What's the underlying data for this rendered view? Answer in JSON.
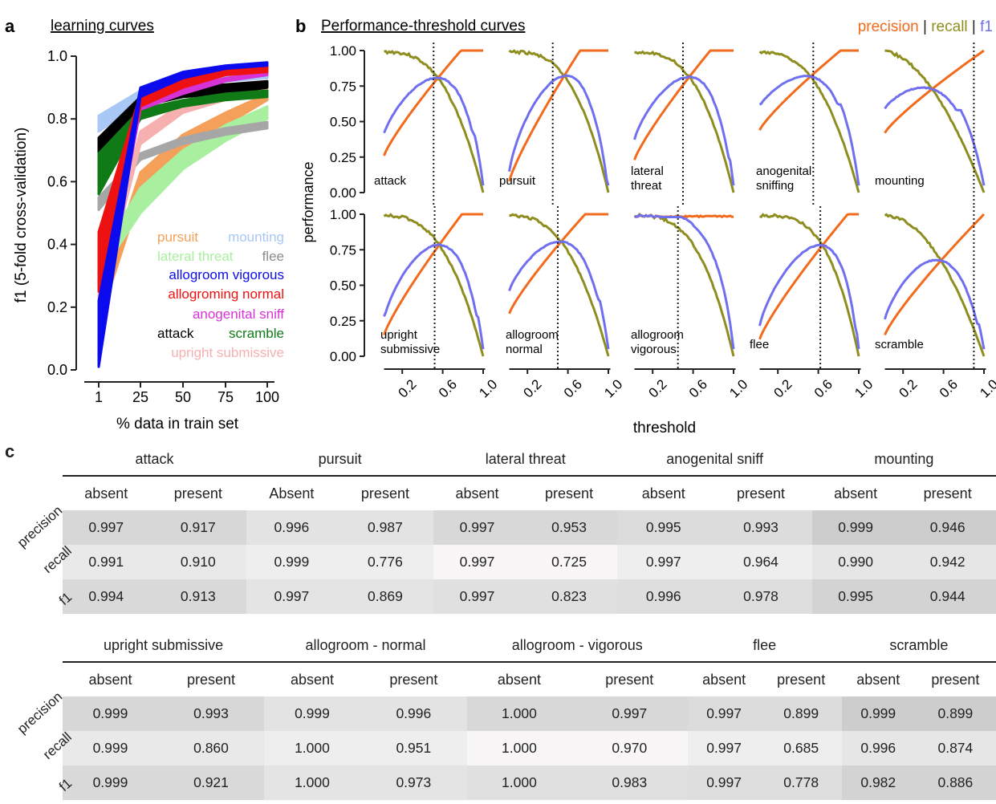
{
  "panel_a": {
    "letter": "a",
    "title": "learning curves",
    "chart_data": {
      "type": "line",
      "x": [
        1,
        25,
        50,
        75,
        100
      ],
      "x_tick_labels": [
        "1",
        "25",
        "50",
        "75",
        "100"
      ],
      "xlabel": "% data in train set",
      "ylabel": "f1 (5-fold cross-validation)",
      "ylim": [
        0,
        1
      ],
      "y_tick_labels": [
        "0.0",
        "0.2",
        "0.4",
        "0.6",
        "0.8",
        "1.0"
      ],
      "series": [
        {
          "name": "pursuit",
          "color": "#f5a05a",
          "lo": [
            0.15,
            0.56,
            0.69,
            0.78,
            0.86
          ],
          "hi": [
            0.23,
            0.63,
            0.75,
            0.82,
            0.88
          ]
        },
        {
          "name": "mounting",
          "color": "#a9c8f5",
          "lo": [
            0.76,
            0.85,
            0.9,
            0.92,
            0.93
          ],
          "hi": [
            0.81,
            0.89,
            0.93,
            0.95,
            0.96
          ]
        },
        {
          "name": "lateral threat",
          "color": "#a8f0a0",
          "lo": [
            0.3,
            0.5,
            0.64,
            0.73,
            0.8
          ],
          "hi": [
            0.36,
            0.58,
            0.7,
            0.78,
            0.84
          ]
        },
        {
          "name": "flee",
          "color": "#a6a6a6",
          "lo": [
            0.51,
            0.67,
            0.72,
            0.75,
            0.77
          ],
          "hi": [
            0.55,
            0.69,
            0.74,
            0.77,
            0.79
          ]
        },
        {
          "name": "upright submissive",
          "color": "#f6b0b0",
          "lo": [
            0.19,
            0.72,
            0.82,
            0.86,
            0.88
          ],
          "hi": [
            0.27,
            0.76,
            0.85,
            0.88,
            0.9
          ]
        },
        {
          "name": "attack",
          "color": "#000000",
          "lo": [
            0.69,
            0.84,
            0.87,
            0.88,
            0.9
          ],
          "hi": [
            0.74,
            0.87,
            0.9,
            0.91,
            0.92
          ]
        },
        {
          "name": "scramble",
          "color": "#107a16",
          "lo": [
            0.56,
            0.8,
            0.84,
            0.86,
            0.87
          ],
          "hi": [
            0.69,
            0.83,
            0.86,
            0.88,
            0.89
          ]
        },
        {
          "name": "anogenital sniff",
          "color": "#d633d6",
          "lo": [
            0.12,
            0.83,
            0.88,
            0.92,
            0.94
          ],
          "hi": [
            0.2,
            0.86,
            0.9,
            0.93,
            0.95
          ]
        },
        {
          "name": "allogroming normal",
          "color": "#ee1111",
          "lo": [
            0.25,
            0.84,
            0.9,
            0.94,
            0.95
          ],
          "hi": [
            0.44,
            0.88,
            0.93,
            0.96,
            0.97
          ]
        },
        {
          "name": "allogroom vigorous",
          "color": "#0b0bee",
          "lo": [
            0.01,
            0.87,
            0.93,
            0.96,
            0.97
          ],
          "hi": [
            0.22,
            0.9,
            0.95,
            0.97,
            0.98
          ]
        }
      ],
      "legend_rows": [
        [
          {
            "name": "pursuit",
            "color": "#f5a05a"
          },
          {
            "name": "mounting",
            "color": "#a9c8f5"
          }
        ],
        [
          {
            "name": "lateral threat",
            "color": "#a8f0a0"
          },
          {
            "name": "flee",
            "color": "#8c8c8c"
          }
        ],
        [
          {
            "name": "allogroom vigorous",
            "color": "#0b0bee"
          }
        ],
        [
          {
            "name": "allogroming normal",
            "color": "#ee1111"
          }
        ],
        [
          {
            "name": "anogenital sniff",
            "color": "#d633d6"
          }
        ],
        [
          {
            "name": "attack",
            "color": "#000000"
          },
          {
            "name": "scramble",
            "color": "#107a16"
          }
        ],
        [
          {
            "name": "upright submissive",
            "color": "#f6b0b0"
          }
        ]
      ]
    }
  },
  "panel_b": {
    "letter": "b",
    "title": "Performance-threshold curves",
    "legend": [
      {
        "label": "precision",
        "color": "#f26a1b"
      },
      {
        "label": " | ",
        "color": "#222222"
      },
      {
        "label": "recall",
        "color": "#8e8e20"
      },
      {
        "label": " | ",
        "color": "#222222"
      },
      {
        "label": "f1",
        "color": "#6f6ff0"
      }
    ],
    "ylabel": "performance",
    "xlabel": "threshold",
    "y_tick_labels": [
      "0.00",
      "0.25",
      "0.50",
      "0.75",
      "1.00"
    ],
    "x_tick_labels": [
      "0.2",
      "0.6",
      "1.0"
    ],
    "chart_data": {
      "type": "line",
      "xlim": [
        0,
        1
      ],
      "ylim": [
        0,
        1
      ],
      "series_colors": {
        "precision": "#f26a1b",
        "recall": "#8e8e20",
        "f1": "#6f6ff0"
      },
      "panels": [
        {
          "name": [
            "attack"
          ],
          "threshold": 0.51,
          "p_start": 0.26,
          "r_drop": 0.56,
          "f_peak": 0.87,
          "f_start": 0.42
        },
        {
          "name": [
            "pursuit"
          ],
          "threshold": 0.45,
          "p_start": 0.08,
          "r_drop": 0.5,
          "f_peak": 0.88,
          "f_start": 0.05
        },
        {
          "name": [
            "lateral",
            "threat"
          ],
          "threshold": 0.5,
          "p_start": 0.23,
          "r_drop": 0.52,
          "f_peak": 0.84,
          "f_start": 0.25
        },
        {
          "name": [
            "anogenital",
            "sniffing"
          ],
          "threshold": 0.55,
          "p_start": 0.44,
          "r_drop": 0.6,
          "f_peak": 0.94,
          "f_start": 0.62
        },
        {
          "name": [
            "mounting"
          ],
          "threshold": 0.9,
          "p_start": 0.42,
          "r_drop": 0.8,
          "f_peak": 0.88,
          "f_start": 0.58
        },
        {
          "name": [
            "upright",
            "submissive"
          ],
          "threshold": 0.52,
          "p_start": 0.15,
          "r_drop": 0.58,
          "f_peak": 0.92,
          "f_start": 0.28
        },
        {
          "name": [
            "allogroom",
            "normal"
          ],
          "threshold": 0.5,
          "p_start": 0.3,
          "r_drop": 0.6,
          "f_peak": 0.97,
          "f_start": 0.4
        },
        {
          "name": [
            "allogroom",
            "vigorous"
          ],
          "threshold": 0.45,
          "p_start": 0.97,
          "r_drop": 0.5,
          "f_peak": 0.99,
          "f_start": 0.98
        },
        {
          "name": [
            "flee"
          ],
          "threshold": 0.62,
          "p_start": 0.12,
          "r_drop": 0.4,
          "f_peak": 0.72,
          "f_start": 0.2
        },
        {
          "name": [
            "scramble"
          ],
          "threshold": 0.9,
          "p_start": 0.15,
          "r_drop": 0.75,
          "f_peak": 0.76,
          "f_start": 0.23
        }
      ]
    }
  },
  "panel_c": {
    "letter": "c",
    "row_labels": [
      "precision",
      "recall",
      "f1"
    ],
    "tables": [
      {
        "groups": [
          "attack",
          "pursuit",
          "lateral threat",
          "anogenital  sniff",
          "mounting"
        ],
        "columns": [
          "absent",
          "present",
          "Absent",
          "present",
          "absent",
          "present",
          "absent",
          "present",
          "absent",
          "present"
        ],
        "rows": [
          [
            "0.997",
            "0.917",
            "0.996",
            "0.987",
            "0.997",
            "0.953",
            "0.995",
            "0.993",
            "0.999",
            "0.946"
          ],
          [
            "0.991",
            "0.910",
            "0.999",
            "0.776",
            "0.997",
            "0.725",
            "0.997",
            "0.964",
            "0.990",
            "0.942"
          ],
          [
            "0.994",
            "0.913",
            "0.997",
            "0.869",
            "0.997",
            "0.823",
            "0.996",
            "0.978",
            "0.995",
            "0.944"
          ]
        ]
      },
      {
        "groups": [
          "upright submissive",
          "allogroom  - normal",
          "allogroom  - vigorous",
          "flee",
          "scramble"
        ],
        "columns": [
          "absent",
          "present",
          "absent",
          "present",
          "absent",
          "present",
          "absent",
          "present",
          "absent",
          "present"
        ],
        "rows": [
          [
            "0.999",
            "0.993",
            "0.999",
            "0.996",
            "1.000",
            "0.997",
            "0.997",
            "0.899",
            "0.999",
            "0.899"
          ],
          [
            "0.999",
            "0.860",
            "1.000",
            "0.951",
            "1.000",
            "0.970",
            "0.997",
            "0.685",
            "0.996",
            "0.874"
          ],
          [
            "0.999",
            "0.921",
            "1.000",
            "0.973",
            "1.000",
            "0.983",
            "0.997",
            "0.778",
            "0.982",
            "0.886"
          ]
        ]
      }
    ]
  }
}
